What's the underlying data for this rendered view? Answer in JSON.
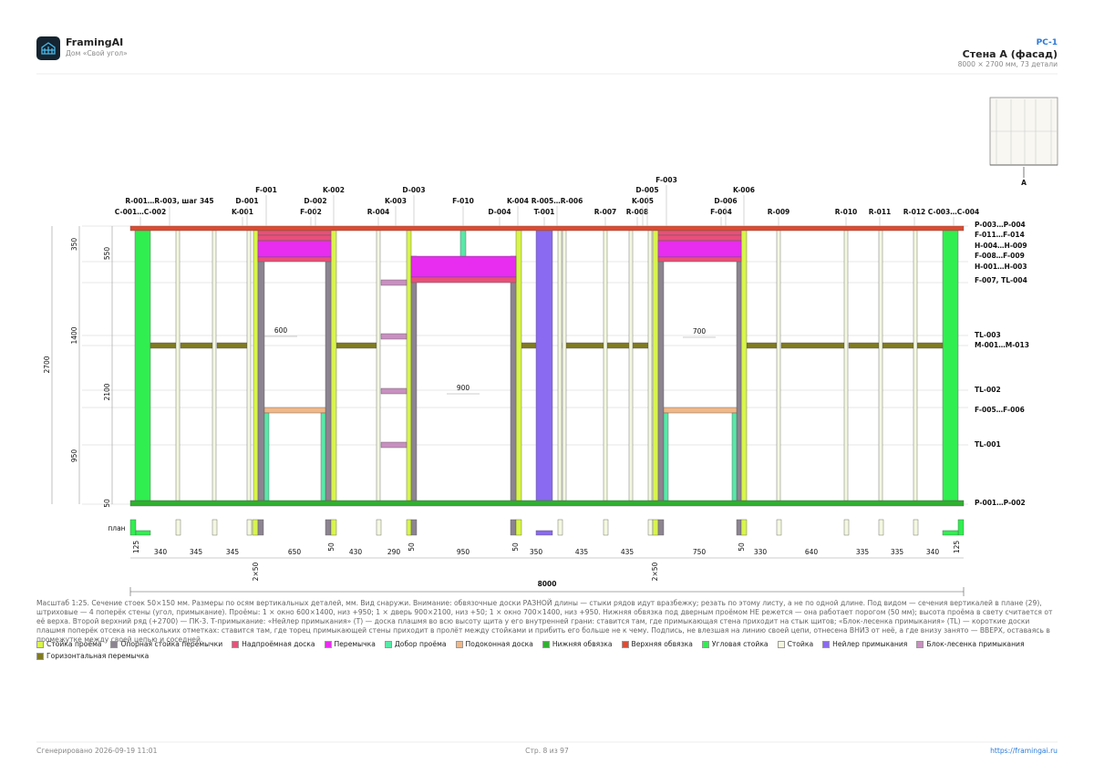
{
  "header": {
    "app": "FramingAI",
    "project": "Дом «Свой угол»",
    "sheet": "PC-1",
    "title": "Стена А (фасад)",
    "subtitle": "8000 × 2700 мм, 73 детали"
  },
  "drawing": {
    "top_labels": [
      "C-001…C-002",
      "K-001",
      "F-002",
      "R-004",
      "D-004",
      "T-001",
      "R-007",
      "R-008",
      "F-004",
      "R-009",
      "R-010",
      "R-011",
      "R-012",
      "C-003…C-004",
      "R-001…R-003, шаг 345",
      "D-001",
      "D-002",
      "K-003",
      "F-010",
      "K-004",
      "R-005…R-006",
      "K-005",
      "D-006",
      "F-001",
      "K-002",
      "D-003",
      "D-005",
      "K-006",
      "F-003"
    ],
    "right_labels": [
      "P-003…P-004",
      "F-011…F-014",
      "H-004…H-009",
      "F-008…F-009",
      "H-001…H-003",
      "F-007, TL-004",
      "TL-003",
      "M-001…M-013",
      "TL-002",
      "F-005…F-006",
      "TL-001",
      "P-001…P-002"
    ],
    "left_dims": [
      2700,
      350,
      1400,
      950,
      550,
      2100,
      50
    ],
    "inner_dims": [
      600,
      900,
      700
    ],
    "plan_label": "план",
    "plan_dims": [
      125,
      340,
      345,
      345,
      650,
      50,
      430,
      290,
      50,
      950,
      50,
      350,
      435,
      435,
      750,
      50,
      330,
      640,
      335,
      335,
      340,
      125
    ],
    "double_dims": [
      "2×50",
      "2×50"
    ],
    "total": 8000,
    "view_marker": "A"
  },
  "note": "Масштаб 1:25. Сечение стоек 50×150 мм. Размеры по осям вертикальных деталей, мм. Вид снаружи. Внимание: обвязочные доски РАЗНОЙ длины — стыки рядов идут вразбежку; резать по этому листу, а не по одной длине. Под видом — сечения вертикалей в плане (29), штриховые — 4 поперёк стены (угол, примыкание). Проёмы: 1 × окно 600×1400, низ +950; 1 × дверь 900×2100, низ +50; 1 × окно 700×1400, низ +950. Нижняя обвязка под дверным проёмом НЕ режется — она работает порогом (50 мм); высота проёма в свету считается от её верха. Второй верхний ряд (+2700) — ПК-3. Т-примыкание: «Нейлер примыкания» (T) — доска плашмя во всю высоту щита у его внутренней грани: ставится там, где примыкающая стена приходит на стык щитов; «Блок-лесенка примыкания» (TL) — короткие доски плашмя поперёк отсека на нескольких отметках: ставится там, где торец примыкающей стены приходит в пролёт между стойками и прибить его больше не к чему. Подпись, не влезшая на линию своей цепи, отнесена ВНИЗ от неё, а где внизу занято — ВВЕРХ, оставаясь в промежутке между своей цепью и соседней.",
  "legend": [
    {
      "label": "Стойка проёма",
      "color": "#d8f54a"
    },
    {
      "label": "Опорная стойка перемычки",
      "color": "#8c8490"
    },
    {
      "label": "Надпроёмная доска",
      "color": "#e8507a"
    },
    {
      "label": "Перемычка",
      "color": "#e82cf0"
    },
    {
      "label": "Добор проёма",
      "color": "#58e8a8"
    },
    {
      "label": "Подоконная доска",
      "color": "#f0b888"
    },
    {
      "label": "Нижняя обвязка",
      "color": "#30b030"
    },
    {
      "label": "Верхняя обвязка",
      "color": "#e04a30"
    },
    {
      "label": "Угловая стойка",
      "color": "#30ee50"
    },
    {
      "label": "Стойка",
      "color": "#f4f8e0"
    },
    {
      "label": "Нейлер примыкания",
      "color": "#8a6af0"
    },
    {
      "label": "Блок-лесенка примыкания",
      "color": "#c890c0"
    },
    {
      "label": "Горизонтальная перемычка",
      "color": "#807a20"
    }
  ],
  "footer": {
    "generated": "Сгенерировано 2026-09-19 11:01",
    "page": "Стр. 8 из 97",
    "url": "https://framingai.ru"
  }
}
